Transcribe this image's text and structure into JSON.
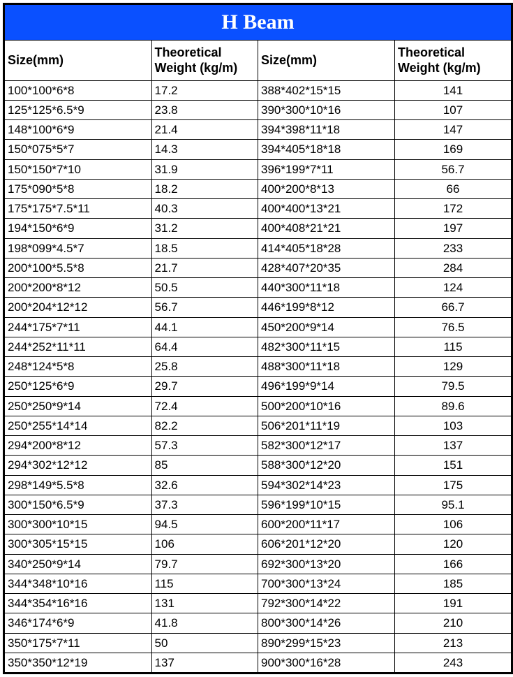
{
  "title": "H Beam",
  "columns": [
    "Size(mm)",
    "Theoretical Weight (kg/m)",
    "Size(mm)",
    "Theoretical Weight (kg/m)"
  ],
  "title_bg": "#0a50ff",
  "title_color": "#ffffff",
  "border_color": "#000000",
  "text_color": "#000000",
  "background_color": "#ffffff",
  "title_fontsize": 30,
  "header_fontsize": 18,
  "cell_fontsize": 17,
  "rows": [
    {
      "s1": "100*100*6*8",
      "w1": "17.2",
      "s2": "388*402*15*15",
      "w2": "141",
      "a2": "center"
    },
    {
      "s1": "125*125*6.5*9",
      "w1": "23.8",
      "s2": "390*300*10*16",
      "w2": "107",
      "a2": "center"
    },
    {
      "s1": "148*100*6*9",
      "w1": "21.4",
      "s2": "394*398*11*18",
      "w2": "147",
      "a2": "center"
    },
    {
      "s1": "150*075*5*7",
      "w1": "14.3",
      "s2": "394*405*18*18",
      "w2": "169",
      "a2": "center"
    },
    {
      "s1": "150*150*7*10",
      "w1": "31.9",
      "s2": "396*199*7*11",
      "w2": "56.7",
      "a2": "center"
    },
    {
      "s1": "175*090*5*8",
      "w1": "18.2",
      "s2": "400*200*8*13",
      "w2": "66",
      "a2": "center"
    },
    {
      "s1": "175*175*7.5*11",
      "w1": "40.3",
      "s2": "400*400*13*21",
      "w2": "172",
      "a2": "center"
    },
    {
      "s1": "194*150*6*9",
      "w1": "31.2",
      "s2": "400*408*21*21",
      "w2": "197",
      "a2": "center"
    },
    {
      "s1": "198*099*4.5*7",
      "w1": "18.5",
      "s2": "414*405*18*28",
      "w2": "233",
      "a2": "center"
    },
    {
      "s1": "200*100*5.5*8",
      "w1": "21.7",
      "s2": "428*407*20*35",
      "w2": "284",
      "a2": "center"
    },
    {
      "s1": "200*200*8*12",
      "w1": "50.5",
      "s2": "440*300*11*18",
      "w2": "124",
      "a2": "center"
    },
    {
      "s1": "200*204*12*12",
      "w1": "56.7",
      "s2": "446*199*8*12",
      "w2": "66.7",
      "a2": "center"
    },
    {
      "s1": "244*175*7*11",
      "w1": "44.1",
      "s2": "450*200*9*14",
      "w2": "76.5",
      "a2": "center"
    },
    {
      "s1": "244*252*11*11",
      "w1": "64.4",
      "s2": "482*300*11*15",
      "w2": "115",
      "a2": "center"
    },
    {
      "s1": "248*124*5*8",
      "w1": "25.8",
      "s2": "488*300*11*18",
      "w2": "129",
      "a2": "center"
    },
    {
      "s1": "250*125*6*9",
      "w1": "29.7",
      "s2": "496*199*9*14",
      "w2": "79.5",
      "a2": "center"
    },
    {
      "s1": "250*250*9*14",
      "w1": "72.4",
      "s2": "500*200*10*16",
      "w2": "89.6",
      "a2": "center"
    },
    {
      "s1": "250*255*14*14",
      "w1": "82.2",
      "s2": "506*201*11*19",
      "w2": "103",
      "a2": "center"
    },
    {
      "s1": "294*200*8*12",
      "w1": "57.3",
      "s2": "582*300*12*17",
      "w2": "137",
      "a2": "center"
    },
    {
      "s1": "294*302*12*12",
      "w1": "85",
      "s2": "588*300*12*20",
      "w2": "151",
      "a2": "center"
    },
    {
      "s1": "298*149*5.5*8",
      "w1": "32.6",
      "s2": "594*302*14*23",
      "w2": "175",
      "a2": "center"
    },
    {
      "s1": "300*150*6.5*9",
      "w1": "37.3",
      "s2": "596*199*10*15",
      "w2": "95.1",
      "a2": "center"
    },
    {
      "s1": "300*300*10*15",
      "w1": "94.5",
      "s2": "600*200*11*17",
      "w2": "106",
      "a2": "center"
    },
    {
      "s1": "300*305*15*15",
      "w1": "106",
      "s2": "606*201*12*20",
      "w2": "120",
      "a2": "center"
    },
    {
      "s1": "340*250*9*14",
      "w1": "79.7",
      "s2": "692*300*13*20",
      "w2": "166",
      "a2": "center"
    },
    {
      "s1": "344*348*10*16",
      "w1": "115",
      "s2": "700*300*13*24",
      "w2": "185",
      "a2": "center"
    },
    {
      "s1": "344*354*16*16",
      "w1": "131",
      "s2": "792*300*14*22",
      "w2": "191",
      "a2": "center"
    },
    {
      "s1": "346*174*6*9",
      "w1": "41.8",
      "s2": "800*300*14*26",
      "w2": "210",
      "a2": "center"
    },
    {
      "s1": "350*175*7*11",
      "w1": "50",
      "s2": "890*299*15*23",
      "w2": "213",
      "a2": "center"
    },
    {
      "s1": "350*350*12*19",
      "w1": "137",
      "s2": "900*300*16*28",
      "w2": "243",
      "a2": "center"
    }
  ]
}
